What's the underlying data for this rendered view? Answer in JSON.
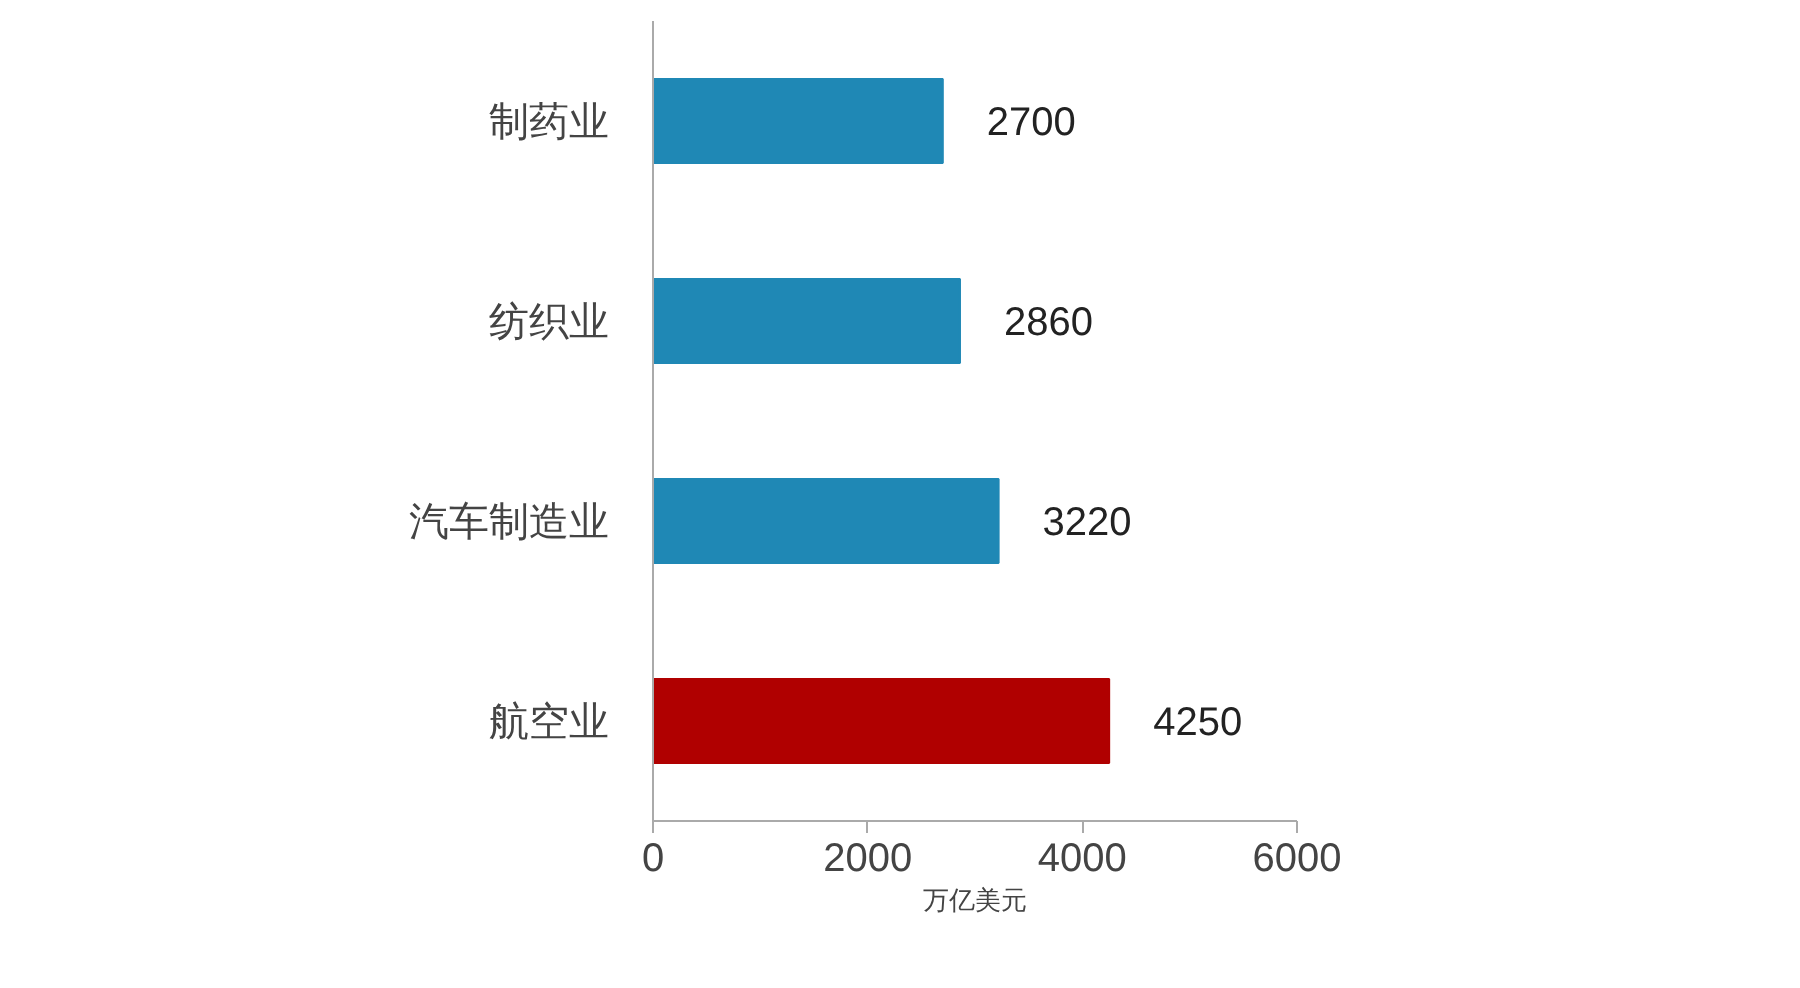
{
  "chart_data": {
    "type": "bar",
    "orientation": "horizontal",
    "categories": [
      "制药业",
      "纺织业",
      "汽车制造业",
      "航空业"
    ],
    "values": [
      2700,
      2860,
      3220,
      4250
    ],
    "colors": [
      "#1f88b5",
      "#1f88b5",
      "#1f88b5",
      "#b00000"
    ],
    "xlim": [
      0,
      6000
    ],
    "xticks": [
      0,
      2000,
      4000,
      6000
    ],
    "xlabel": "万亿美元",
    "data_labels": true,
    "grid": false
  }
}
